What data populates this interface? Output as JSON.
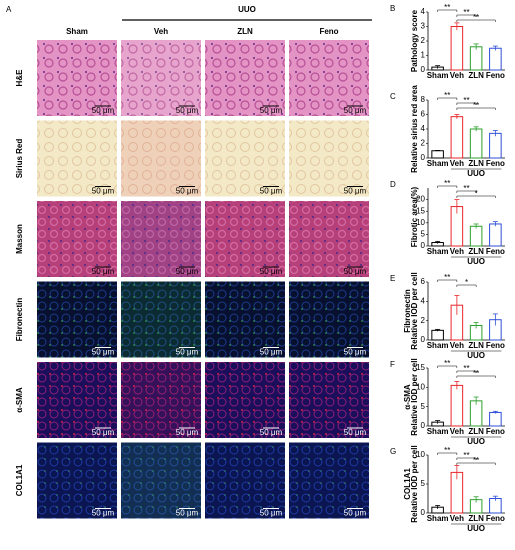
{
  "panel_a": {
    "label": "A",
    "group": "UUO",
    "columns": [
      "Sham",
      "Veh",
      "ZLN",
      "Feno"
    ],
    "rows": [
      "H&E",
      "Sirius Red",
      "Masson",
      "Fibronectin",
      "α-SMA",
      "COL1A1"
    ],
    "scale_bar": "50 μm"
  },
  "chart_data": [
    {
      "type": "bar",
      "panel": "B",
      "ylabel": [
        "Pathology score"
      ],
      "categories": [
        "Sham",
        "Veh",
        "ZLN",
        "Feno"
      ],
      "values": [
        0.2,
        3.0,
        1.6,
        1.5
      ],
      "errors": [
        0.1,
        0.25,
        0.2,
        0.15
      ],
      "colors": [
        "#000000",
        "#e8262a",
        "#2ca02c",
        "#2f4fd8"
      ],
      "ylim": [
        0,
        4
      ],
      "yticks": [
        0,
        1,
        2,
        3,
        4
      ],
      "annotations": [
        "**",
        "**",
        "**"
      ]
    },
    {
      "type": "bar",
      "panel": "C",
      "ylabel": [
        "Relative sirius red area"
      ],
      "group": "UUO",
      "categories": [
        "Sham",
        "Veh",
        "ZLN",
        "Feno"
      ],
      "values": [
        1,
        5.7,
        4.0,
        3.4
      ],
      "errors": [
        0.05,
        0.3,
        0.3,
        0.4
      ],
      "colors": [
        "#000000",
        "#e8262a",
        "#2ca02c",
        "#2f4fd8"
      ],
      "ylim": [
        0,
        8
      ],
      "yticks": [
        0,
        2,
        4,
        6,
        8
      ],
      "annotations": [
        "**",
        "**",
        "**"
      ]
    },
    {
      "type": "bar",
      "panel": "D",
      "ylabel": [
        "Fibrotic area(%)"
      ],
      "group": "UUO",
      "categories": [
        "Sham",
        "Veh",
        "ZLN",
        "Feno"
      ],
      "values": [
        1.5,
        17,
        8.5,
        9.5
      ],
      "errors": [
        0.5,
        3,
        1,
        1
      ],
      "colors": [
        "#000000",
        "#e8262a",
        "#2ca02c",
        "#2f4fd8"
      ],
      "ylim": [
        0,
        25
      ],
      "yticks": [
        0,
        5,
        10,
        15,
        20
      ],
      "annotations": [
        "**",
        "**",
        "*"
      ]
    },
    {
      "type": "bar",
      "panel": "E",
      "ylabel": [
        "Fibronectin",
        "Relative IOD per cell"
      ],
      "group": "UUO",
      "categories": [
        "Sham",
        "Veh",
        "ZLN",
        "Feno"
      ],
      "values": [
        1,
        3.6,
        1.5,
        2.1
      ],
      "errors": [
        0.1,
        1.0,
        0.3,
        0.6
      ],
      "colors": [
        "#000000",
        "#e8262a",
        "#2ca02c",
        "#2f4fd8"
      ],
      "ylim": [
        0,
        6
      ],
      "yticks": [
        0,
        2,
        4,
        6
      ],
      "annotations": [
        "**",
        "*"
      ]
    },
    {
      "type": "bar",
      "panel": "F",
      "ylabel": [
        "α-SMA",
        "Relative IOD per cell"
      ],
      "group": "UUO",
      "categories": [
        "Sham",
        "Veh",
        "ZLN",
        "Feno"
      ],
      "values": [
        1,
        10.5,
        6.5,
        3.5
      ],
      "errors": [
        0.4,
        1.0,
        1.0,
        0.3
      ],
      "colors": [
        "#000000",
        "#e8262a",
        "#2ca02c",
        "#2f4fd8"
      ],
      "ylim": [
        0,
        15
      ],
      "yticks": [
        0,
        5,
        10,
        15
      ],
      "annotations": [
        "**",
        "**",
        "**"
      ]
    },
    {
      "type": "bar",
      "panel": "G",
      "ylabel": [
        "COL1A1",
        "Relative IOD per cell"
      ],
      "group": "UUO",
      "categories": [
        "Sham",
        "Veh",
        "ZLN",
        "Feno"
      ],
      "values": [
        1,
        7,
        2.3,
        2.5
      ],
      "errors": [
        0.3,
        1.2,
        0.5,
        0.4
      ],
      "colors": [
        "#000000",
        "#e8262a",
        "#2ca02c",
        "#2f4fd8"
      ],
      "ylim": [
        0,
        10
      ],
      "yticks": [
        0,
        5,
        10
      ],
      "annotations": [
        "**",
        "**",
        "**"
      ]
    }
  ]
}
